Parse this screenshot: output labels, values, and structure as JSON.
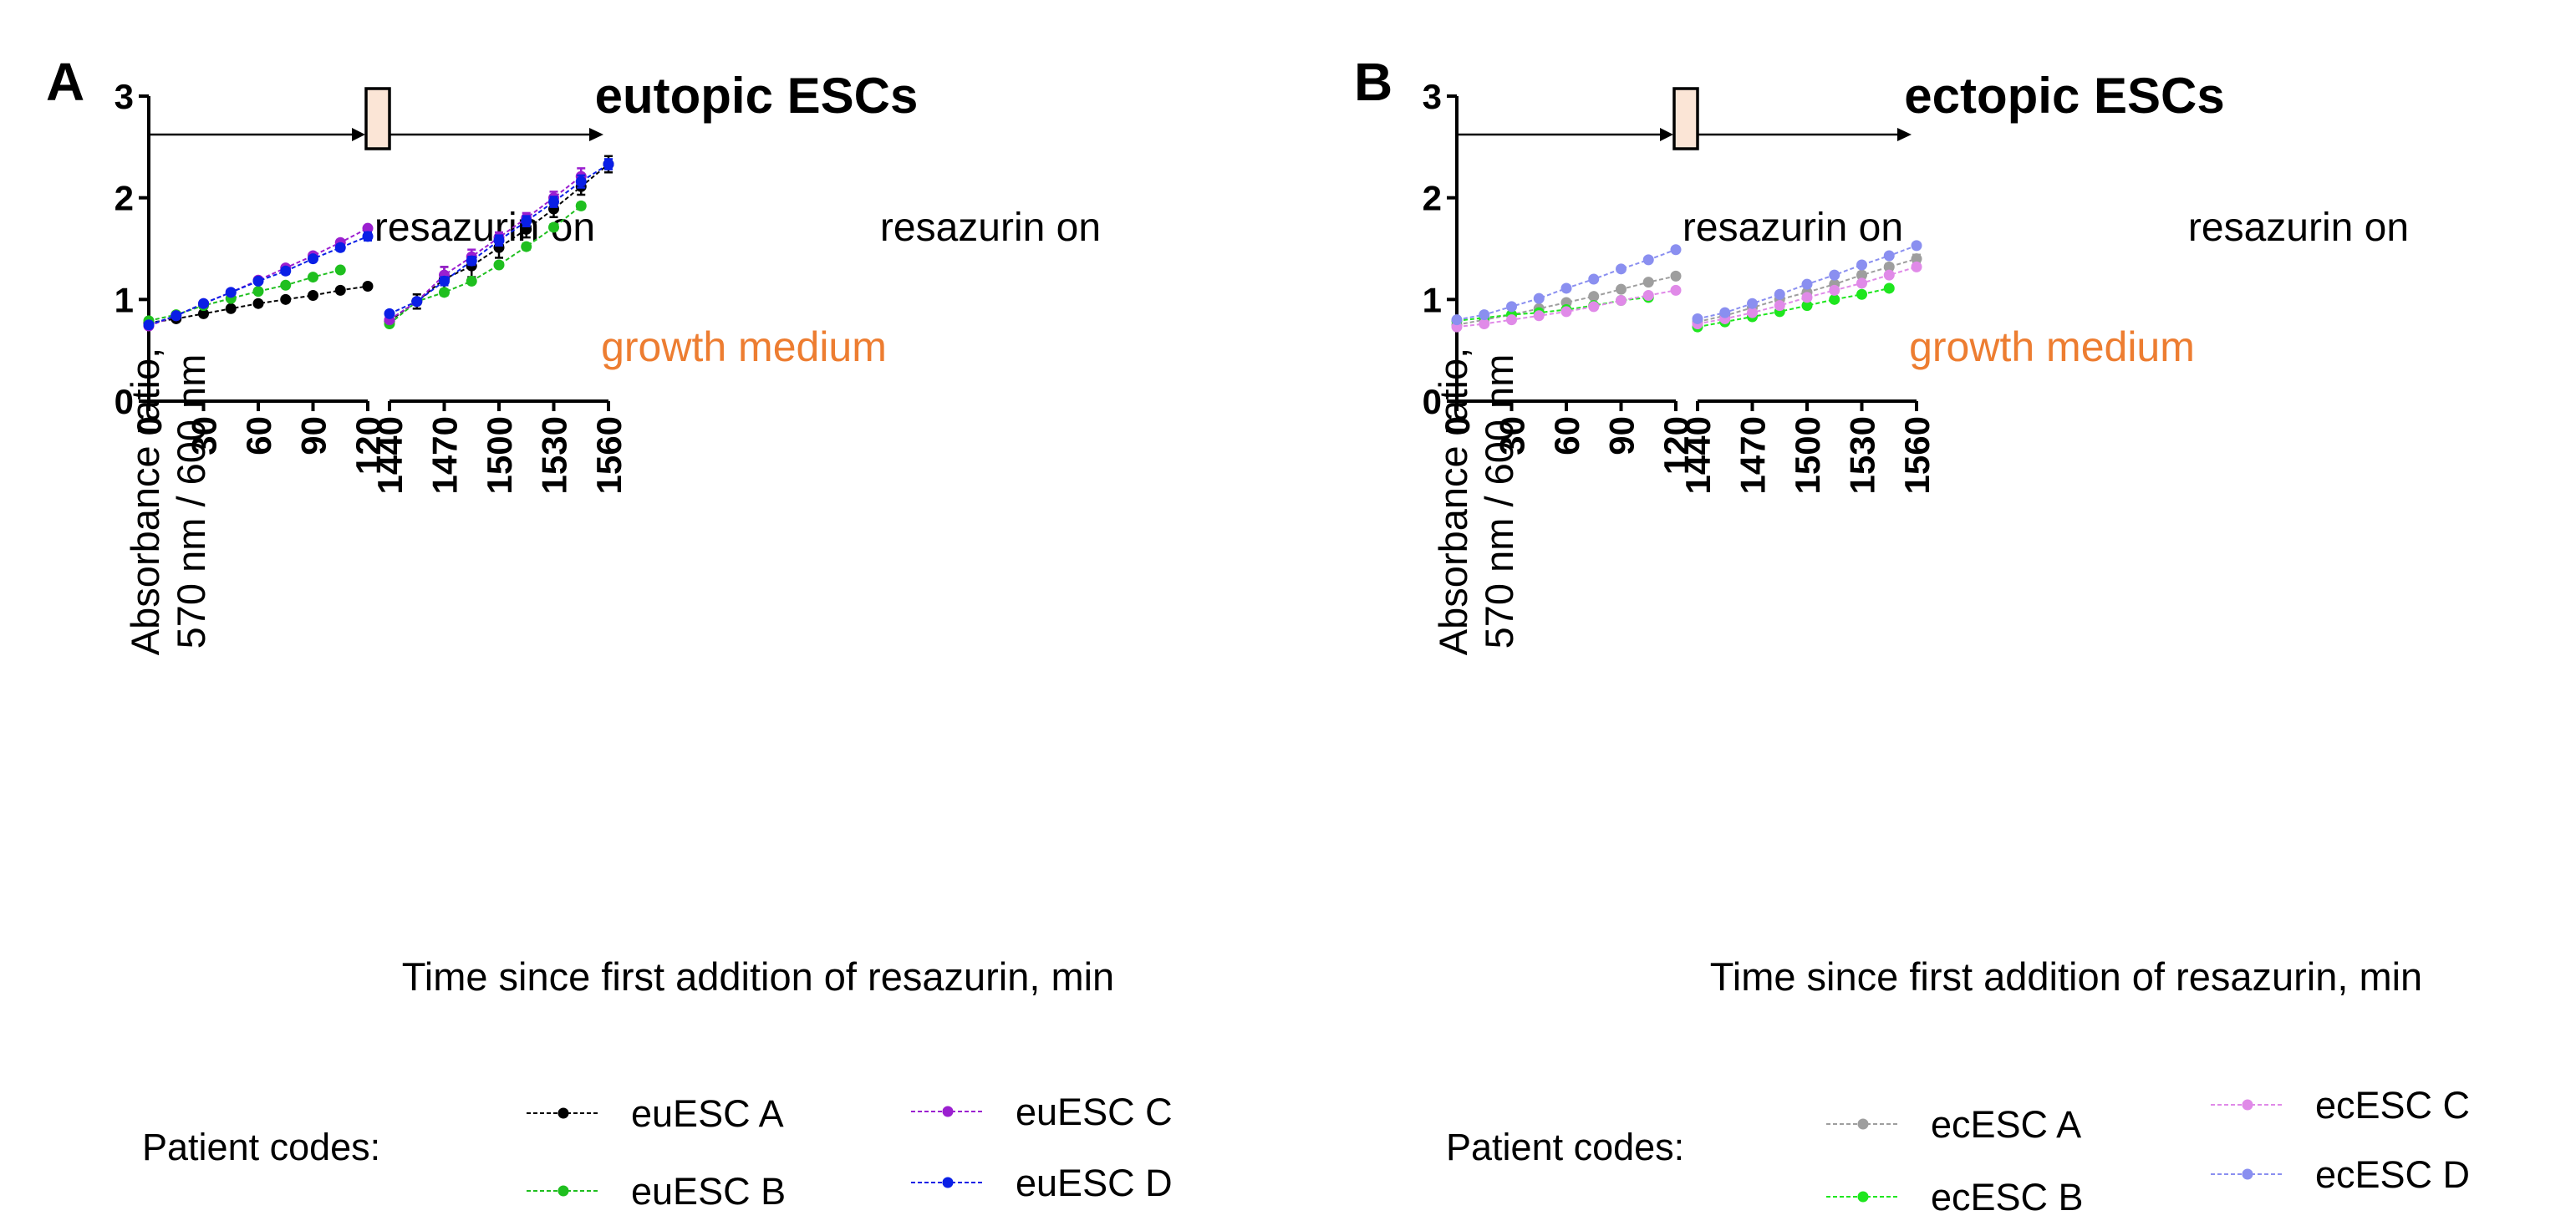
{
  "chart_data": [
    {
      "type": "line",
      "panel_label": "A",
      "title": "eutopic ESCs",
      "ylabel_line1": "Absorbance ratio,",
      "ylabel_line2": "570 nm / 600 nm",
      "xlabel": "Time since first addition of resazurin, min",
      "ylim": [
        0,
        3
      ],
      "yticks": [
        "0",
        "1",
        "2",
        "3"
      ],
      "x_segments": [
        {
          "xlim": [
            0,
            120
          ],
          "ticks": [
            "0",
            "30",
            "60",
            "90",
            "120"
          ]
        },
        {
          "xlim": [
            1440,
            1560
          ],
          "ticks": [
            "1440",
            "1470",
            "1500",
            "1530",
            "1560"
          ]
        }
      ],
      "annotations": {
        "resazurin_left": "resazurin on",
        "resazurin_right": "resazurin on",
        "medium": "growth medium"
      },
      "medium_color": "#ed7d31",
      "box_fill": "#fbe5d6",
      "legend_title": "Patient codes:",
      "series": [
        {
          "name": "euESC A",
          "color": "#000000",
          "x": [
            0,
            15,
            30,
            45,
            60,
            75,
            90,
            105,
            120,
            1440,
            1455,
            1470,
            1485,
            1500,
            1515,
            1530,
            1545,
            1560
          ],
          "values": [
            0.77,
            0.81,
            0.86,
            0.91,
            0.96,
            1.0,
            1.04,
            1.09,
            1.13,
            0.79,
            0.98,
            1.2,
            1.33,
            1.51,
            1.69,
            1.89,
            2.11,
            2.33
          ],
          "errors": [
            0.02,
            0.01,
            0.01,
            0.01,
            0.01,
            0.01,
            0.01,
            0.01,
            0.01,
            0.02,
            0.07,
            0.12,
            0.11,
            0.1,
            0.08,
            0.08,
            0.08,
            0.08
          ]
        },
        {
          "name": "euESC B",
          "color": "#1fbf1f",
          "x": [
            0,
            15,
            30,
            45,
            60,
            75,
            90,
            105,
            1440,
            1455,
            1470,
            1485,
            1500,
            1515,
            1530,
            1545
          ],
          "values": [
            0.79,
            0.85,
            0.94,
            1.01,
            1.08,
            1.14,
            1.22,
            1.29,
            0.76,
            0.98,
            1.07,
            1.18,
            1.34,
            1.52,
            1.71,
            1.92
          ],
          "errors": [
            0.01,
            0.01,
            0.01,
            0.01,
            0.01,
            0.01,
            0.01,
            0.01,
            0.01,
            0.02,
            0.03,
            0.02,
            0.02,
            0.03,
            0.03,
            0.03
          ]
        },
        {
          "name": "euESC C",
          "color": "#9b1fd0",
          "x": [
            0,
            15,
            30,
            45,
            60,
            75,
            90,
            105,
            120,
            1440,
            1455,
            1470,
            1485,
            1500,
            1515,
            1530,
            1545
          ],
          "values": [
            0.74,
            0.84,
            0.96,
            1.07,
            1.19,
            1.31,
            1.43,
            1.56,
            1.7,
            0.8,
            0.98,
            1.24,
            1.42,
            1.61,
            1.8,
            2.0,
            2.21
          ],
          "errors": [
            0.01,
            0.01,
            0.01,
            0.01,
            0.01,
            0.02,
            0.02,
            0.02,
            0.02,
            0.01,
            0.02,
            0.08,
            0.07,
            0.05,
            0.05,
            0.06,
            0.08
          ]
        },
        {
          "name": "euESC D",
          "color": "#0a1fe6",
          "x": [
            0,
            15,
            30,
            45,
            60,
            75,
            90,
            105,
            120,
            1440,
            1455,
            1470,
            1485,
            1500,
            1515,
            1530,
            1545,
            1560
          ],
          "values": [
            0.75,
            0.84,
            0.96,
            1.07,
            1.18,
            1.28,
            1.4,
            1.51,
            1.62,
            0.86,
            0.98,
            1.18,
            1.38,
            1.58,
            1.77,
            1.96,
            2.16,
            2.33
          ],
          "errors": [
            0.01,
            0.01,
            0.01,
            0.01,
            0.01,
            0.03,
            0.02,
            0.03,
            0.04,
            0.01,
            0.02,
            0.04,
            0.04,
            0.05,
            0.05,
            0.05,
            0.06,
            0.05
          ]
        }
      ]
    },
    {
      "type": "line",
      "panel_label": "B",
      "title": "ectopic ESCs",
      "ylabel_line1": "Absorbance ratio,",
      "ylabel_line2": "570 nm / 600 nm",
      "xlabel": "Time since first addition of resazurin, min",
      "ylim": [
        0,
        3
      ],
      "yticks": [
        "0",
        "1",
        "2",
        "3"
      ],
      "x_segments": [
        {
          "xlim": [
            0,
            120
          ],
          "ticks": [
            "0",
            "30",
            "60",
            "90",
            "120"
          ]
        },
        {
          "xlim": [
            1440,
            1560
          ],
          "ticks": [
            "1440",
            "1470",
            "1500",
            "1530",
            "1560"
          ]
        }
      ],
      "annotations": {
        "resazurin_left": "resazurin on",
        "resazurin_right": "resazurin on",
        "medium": "growth medium"
      },
      "medium_color": "#ed7d31",
      "box_fill": "#fbe5d6",
      "legend_title": "Patient codes:",
      "series": [
        {
          "name": "ecESC A",
          "color": "#9e9e9e",
          "x": [
            0,
            15,
            30,
            45,
            60,
            75,
            90,
            105,
            120,
            1440,
            1455,
            1470,
            1485,
            1500,
            1515,
            1530,
            1545,
            1560
          ],
          "values": [
            0.75,
            0.8,
            0.85,
            0.91,
            0.97,
            1.03,
            1.1,
            1.17,
            1.23,
            0.78,
            0.84,
            0.92,
            1.0,
            1.07,
            1.15,
            1.24,
            1.32,
            1.4
          ],
          "errors": [
            0.01,
            0.01,
            0.01,
            0.01,
            0.01,
            0.01,
            0.01,
            0.02,
            0.02,
            0.01,
            0.01,
            0.01,
            0.02,
            0.02,
            0.02,
            0.03,
            0.03,
            0.04
          ]
        },
        {
          "name": "ecESC B",
          "color": "#1ee61e",
          "x": [
            0,
            15,
            30,
            45,
            60,
            75,
            90,
            105,
            1440,
            1455,
            1470,
            1485,
            1500,
            1515,
            1530,
            1545
          ],
          "values": [
            0.79,
            0.82,
            0.85,
            0.87,
            0.9,
            0.94,
            0.99,
            1.02,
            0.73,
            0.78,
            0.83,
            0.88,
            0.94,
            1.0,
            1.05,
            1.11
          ],
          "errors": [
            0.01,
            0.01,
            0.01,
            0.01,
            0.01,
            0.01,
            0.01,
            0.01,
            0.01,
            0.01,
            0.01,
            0.01,
            0.01,
            0.01,
            0.01,
            0.01
          ]
        },
        {
          "name": "ecESC C",
          "color": "#e08ae8",
          "x": [
            0,
            15,
            30,
            45,
            60,
            75,
            90,
            105,
            120,
            1440,
            1455,
            1470,
            1485,
            1500,
            1515,
            1530,
            1545,
            1560
          ],
          "values": [
            0.73,
            0.76,
            0.8,
            0.84,
            0.88,
            0.93,
            0.99,
            1.04,
            1.09,
            0.76,
            0.81,
            0.87,
            0.94,
            1.02,
            1.09,
            1.16,
            1.24,
            1.32
          ],
          "errors": [
            0.01,
            0.01,
            0.01,
            0.01,
            0.01,
            0.01,
            0.01,
            0.01,
            0.01,
            0.01,
            0.01,
            0.01,
            0.01,
            0.01,
            0.01,
            0.01,
            0.02,
            0.02
          ]
        },
        {
          "name": "ecESC D",
          "color": "#8a8ff0",
          "x": [
            0,
            15,
            30,
            45,
            60,
            75,
            90,
            105,
            120,
            1440,
            1455,
            1470,
            1485,
            1500,
            1515,
            1530,
            1545,
            1560
          ],
          "values": [
            0.8,
            0.85,
            0.93,
            1.01,
            1.11,
            1.2,
            1.3,
            1.39,
            1.49,
            0.81,
            0.87,
            0.96,
            1.05,
            1.15,
            1.24,
            1.34,
            1.43,
            1.53
          ],
          "errors": [
            0.01,
            0.01,
            0.01,
            0.01,
            0.01,
            0.01,
            0.01,
            0.01,
            0.01,
            0.01,
            0.01,
            0.01,
            0.01,
            0.01,
            0.01,
            0.01,
            0.01,
            0.01
          ]
        }
      ]
    }
  ]
}
